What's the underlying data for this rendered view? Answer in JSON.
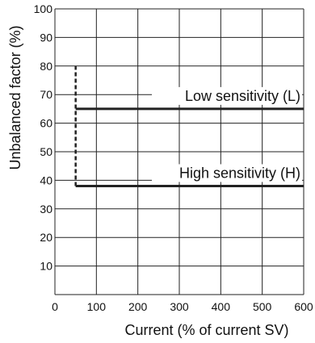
{
  "chart_data": {
    "type": "line",
    "xlabel": "Current (% of current SV)",
    "ylabel": "Unbalanced factor (%)",
    "xlim": [
      0,
      600
    ],
    "ylim": [
      0,
      100
    ],
    "x_ticks": [
      "0",
      "100",
      "200",
      "300",
      "400",
      "500",
      "600"
    ],
    "y_ticks": [
      "10",
      "20",
      "30",
      "40",
      "50",
      "60",
      "70",
      "80",
      "90",
      "100"
    ],
    "grid": true,
    "series": [
      {
        "name": "Low sensitivity (L)",
        "style": "solid",
        "x": [
          50,
          600
        ],
        "y": [
          65,
          65
        ]
      },
      {
        "name": "High sensitivity (H)",
        "style": "solid",
        "x": [
          50,
          600
        ],
        "y": [
          38,
          38
        ]
      }
    ],
    "boundary": {
      "style": "dashed",
      "x": [
        50,
        50
      ],
      "y": [
        38,
        80
      ]
    },
    "colors": {
      "grid": "#222222",
      "line": "#222222",
      "text": "#111111"
    }
  }
}
